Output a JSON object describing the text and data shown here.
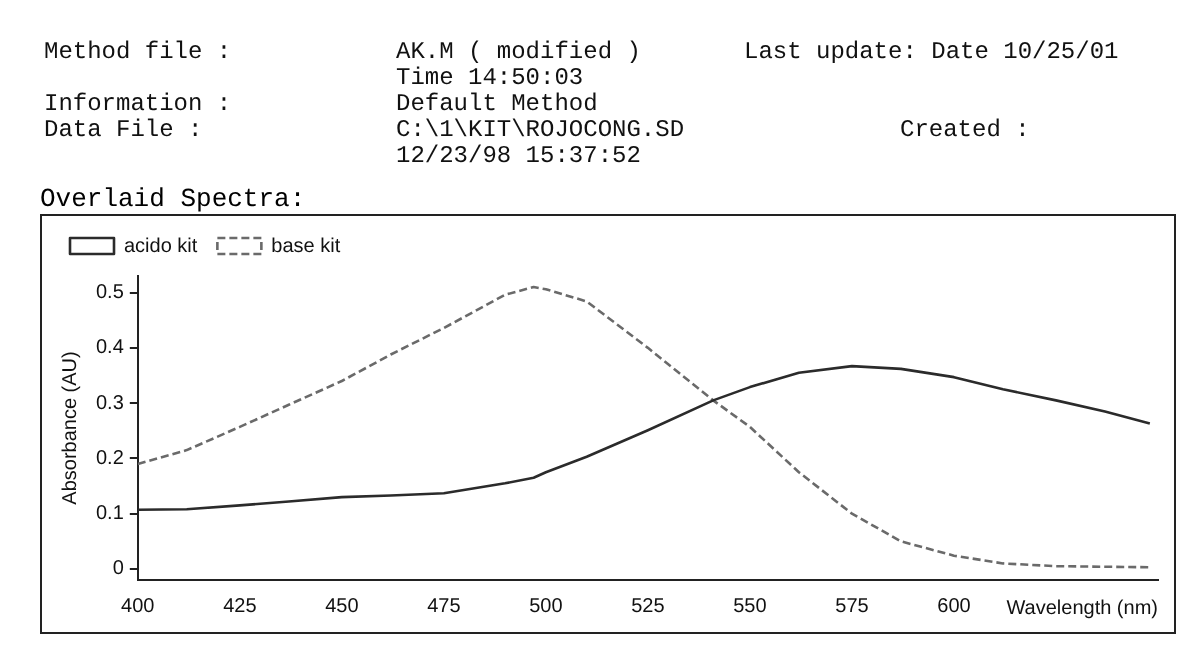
{
  "chart_data": {
    "type": "line",
    "title": "Overlaid Spectra:",
    "xlabel": "Wavelength (nm)",
    "ylabel": "Absorbance (AU)",
    "annotations": [
      "Method file :",
      "AK.M ( modified )",
      "Last update: Date 10/25/01",
      "Time 14:50:03",
      "Information :",
      "Default Method",
      "Data File :",
      "C:\\1\\KIT\\ROJOCONG.SD",
      "Created :",
      "12/23/98 15:37:52"
    ],
    "x": [
      400,
      412,
      425,
      437,
      450,
      462,
      475,
      490,
      497,
      500,
      510,
      525,
      541,
      550,
      562,
      575,
      587,
      600,
      612,
      625,
      637,
      648
    ],
    "series": [
      {
        "name": "acido kit",
        "color": "#2b2b2b",
        "line_style": "solid",
        "values": [
          0.107,
          0.108,
          0.115,
          0.122,
          0.13,
          0.133,
          0.137,
          0.155,
          0.165,
          0.175,
          0.203,
          0.251,
          0.305,
          0.329,
          0.355,
          0.367,
          0.362,
          0.347,
          0.325,
          0.305,
          0.285,
          0.263
        ]
      },
      {
        "name": "base kit",
        "color": "#6a6a6a",
        "line_style": "dashed",
        "values": [
          0.19,
          0.215,
          0.257,
          0.297,
          0.34,
          0.388,
          0.436,
          0.496,
          0.51,
          0.506,
          0.484,
          0.4,
          0.305,
          0.257,
          0.175,
          0.1,
          0.05,
          0.024,
          0.01,
          0.005,
          0.004,
          0.003
        ]
      }
    ],
    "xlim": [
      400,
      650
    ],
    "xticks": [
      400,
      425,
      450,
      475,
      500,
      525,
      550,
      575,
      600
    ],
    "ylim": [
      -0.02,
      0.53
    ],
    "yticks": [
      0,
      0.1,
      0.2,
      0.3,
      0.4,
      0.5
    ],
    "grid": false,
    "legend": "top left",
    "marker": "none"
  }
}
